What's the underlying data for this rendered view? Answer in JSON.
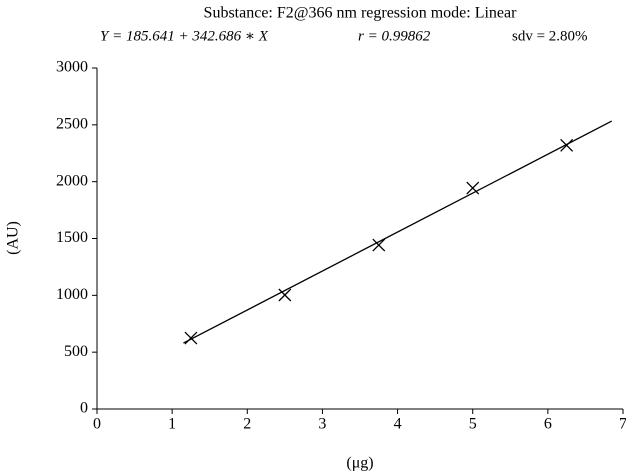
{
  "chart_data": {
    "type": "scatter",
    "title": "Substance: F2@366 nm regression mode: Linear",
    "equation": "Y = 185.641 + 342.686 ∗ X",
    "correlation": "r = 0.99862",
    "deviation": "sdv = 2.80%",
    "x_label": "(μg)",
    "y_label": "(AU)",
    "x": [
      1.25,
      2.5,
      3.75,
      5.0,
      6.25
    ],
    "series": [
      {
        "color": "#000000",
        "marker": "x",
        "values": [
          624,
          1003,
          1442,
          1944,
          2320
        ]
      }
    ],
    "fit": {
      "color": "#000000",
      "x": [
        1.15,
        6.85
      ],
      "values": [
        580,
        2533
      ]
    },
    "xlim": [
      0,
      7
    ],
    "xticks": [
      0,
      1,
      2,
      3,
      4,
      5,
      6,
      7
    ],
    "ylim": [
      0,
      3000
    ],
    "yticks": [
      0,
      500,
      1000,
      1500,
      2000,
      2500,
      3000
    ],
    "grid": false
  }
}
